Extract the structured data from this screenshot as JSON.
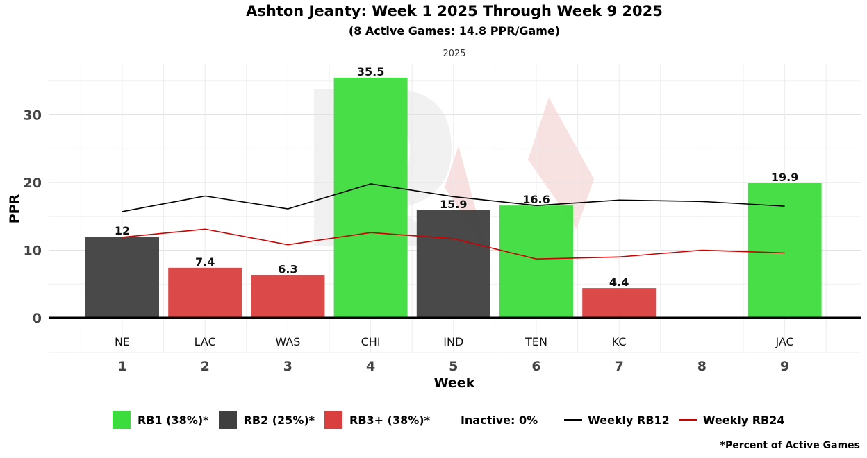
{
  "chart_data": {
    "type": "bar",
    "title": "Ashton Jeanty: Week 1 2025 Through Week 9 2025",
    "subtitle": "(8 Active Games: 14.8 PPR/Game)",
    "facet_label": "2025",
    "xlabel": "Week",
    "ylabel": "PPR",
    "ylim": [
      0,
      36.5
    ],
    "yticks": [
      0,
      10,
      20,
      30
    ],
    "weeks": [
      1,
      2,
      3,
      4,
      5,
      6,
      7,
      8,
      9
    ],
    "opponents": [
      "NE",
      "LAC",
      "WAS",
      "CHI",
      "IND",
      "TEN",
      "KC",
      "",
      "JAC"
    ],
    "values": [
      12,
      7.4,
      6.3,
      35.5,
      15.9,
      16.6,
      4.4,
      null,
      19.9
    ],
    "value_labels": [
      "12",
      "7.4",
      "6.3",
      "35.5",
      "15.9",
      "16.6",
      "4.4",
      "",
      "19.9"
    ],
    "tiers": [
      "RB2",
      "RB3+",
      "RB3+",
      "RB1",
      "RB2",
      "RB1",
      "RB3+",
      "",
      "RB1"
    ],
    "series": [
      {
        "name": "Weekly RB12",
        "type": "line",
        "color": "#000000",
        "values": [
          15.7,
          18.0,
          16.1,
          19.8,
          17.9,
          16.6,
          17.4,
          17.2,
          16.5
        ]
      },
      {
        "name": "Weekly RB24",
        "type": "line",
        "color": "#cc0000",
        "values": [
          11.9,
          13.1,
          10.8,
          12.6,
          11.7,
          8.7,
          9.0,
          10.0,
          9.6
        ]
      }
    ],
    "tier_colors": {
      "RB1": "#3ddc3d",
      "RB2": "#3f3f3f",
      "RB3+": "#d93f3f"
    },
    "grid": true
  },
  "legend": {
    "rb1": "RB1 (38%)*",
    "rb2": "RB2 (25%)*",
    "rb3": "RB3+ (38%)*",
    "inactive": "Inactive: 0%",
    "rb12": "Weekly RB12",
    "rb24": "Weekly RB24"
  },
  "footnote": "*Percent of Active Games"
}
